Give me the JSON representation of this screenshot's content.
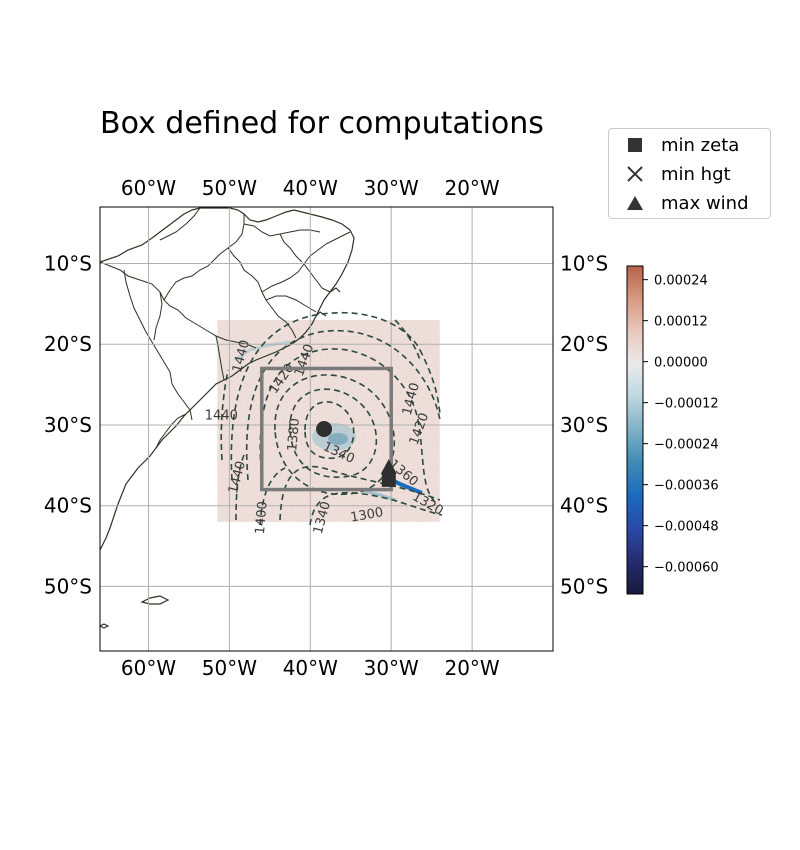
{
  "title": "Box defined for computations",
  "map": {
    "lon_range": [
      -66,
      -10
    ],
    "lat_range": [
      -58,
      -3
    ],
    "lon_ticks": [
      {
        "value": -60,
        "label": "60°W"
      },
      {
        "value": -50,
        "label": "50°W"
      },
      {
        "value": -40,
        "label": "40°W"
      },
      {
        "value": -30,
        "label": "30°W"
      },
      {
        "value": -20,
        "label": "20°W"
      }
    ],
    "lat_ticks": [
      {
        "value": -10,
        "label": "10°S"
      },
      {
        "value": -20,
        "label": "20°S"
      },
      {
        "value": -30,
        "label": "30°S"
      },
      {
        "value": -40,
        "label": "40°S"
      },
      {
        "value": -50,
        "label": "50°S"
      }
    ],
    "gridlines": true,
    "data_extent": {
      "lon": [
        -51.5,
        -24
      ],
      "lat": [
        -42,
        -17
      ]
    },
    "computation_box": {
      "lon": [
        -46,
        -30
      ],
      "lat": [
        -38,
        -23
      ]
    },
    "markers": {
      "min_zeta": {
        "lon": -30.3,
        "lat": -36.8
      },
      "min_hgt": {
        "lon": -30.3,
        "lat": -36.8
      },
      "max_wind": {
        "lon": -30.3,
        "lat": -35.2
      },
      "vortex_center": {
        "lon": -38.3,
        "lat": -30.5
      }
    },
    "contour_labels": [
      {
        "text": "1440",
        "lon": -40.7,
        "lat": -22.0,
        "angle": -70
      },
      {
        "text": "1420",
        "lon": -43.5,
        "lat": -24.3,
        "angle": -55
      },
      {
        "text": "1440",
        "lon": -48.5,
        "lat": -21.5,
        "angle": -75
      },
      {
        "text": "1440",
        "lon": -51.0,
        "lat": -28.9,
        "angle": 0
      },
      {
        "text": "1380",
        "lon": -42.0,
        "lat": -31.2,
        "angle": -85
      },
      {
        "text": "1340",
        "lon": -36.5,
        "lat": -33.5,
        "angle": 25
      },
      {
        "text": "1440",
        "lon": -27.5,
        "lat": -26.8,
        "angle": -75
      },
      {
        "text": "1420",
        "lon": -26.5,
        "lat": -30.5,
        "angle": -70
      },
      {
        "text": "1360",
        "lon": -28.5,
        "lat": -36.0,
        "angle": 40
      },
      {
        "text": "1320",
        "lon": -25.5,
        "lat": -39.8,
        "angle": 30
      },
      {
        "text": "1300",
        "lon": -33.0,
        "lat": -41.2,
        "angle": -10
      },
      {
        "text": "1340",
        "lon": -38.5,
        "lat": -41.5,
        "angle": -75
      },
      {
        "text": "1400",
        "lon": -46.0,
        "lat": -41.5,
        "angle": -85
      },
      {
        "text": "1440",
        "lon": -49.0,
        "lat": -36.5,
        "angle": -75
      }
    ]
  },
  "legend": {
    "items": [
      {
        "marker": "square",
        "label": "min zeta"
      },
      {
        "marker": "x",
        "label": "min hgt"
      },
      {
        "marker": "triangle",
        "label": "max wind"
      }
    ]
  },
  "colorbar": {
    "range": [
      -0.00068,
      0.00028
    ],
    "ticks": [
      {
        "value": 0.00024,
        "label": "0.00024"
      },
      {
        "value": 0.00012,
        "label": "0.00012"
      },
      {
        "value": 0.0,
        "label": "0.00000"
      },
      {
        "value": -0.00012,
        "label": "−0.00012"
      },
      {
        "value": -0.00024,
        "label": "−0.00024"
      },
      {
        "value": -0.00036,
        "label": "−0.00036"
      },
      {
        "value": -0.00048,
        "label": "−0.00048"
      },
      {
        "value": -0.0006,
        "label": "−0.00060"
      }
    ],
    "colors": [
      "#161a3b",
      "#262c6e",
      "#2a49a8",
      "#1a6bc0",
      "#3f8bb3",
      "#7fb0c6",
      "#bcd6df",
      "#eaeaea",
      "#e9c9bd",
      "#d69a82",
      "#b8624a"
    ]
  }
}
